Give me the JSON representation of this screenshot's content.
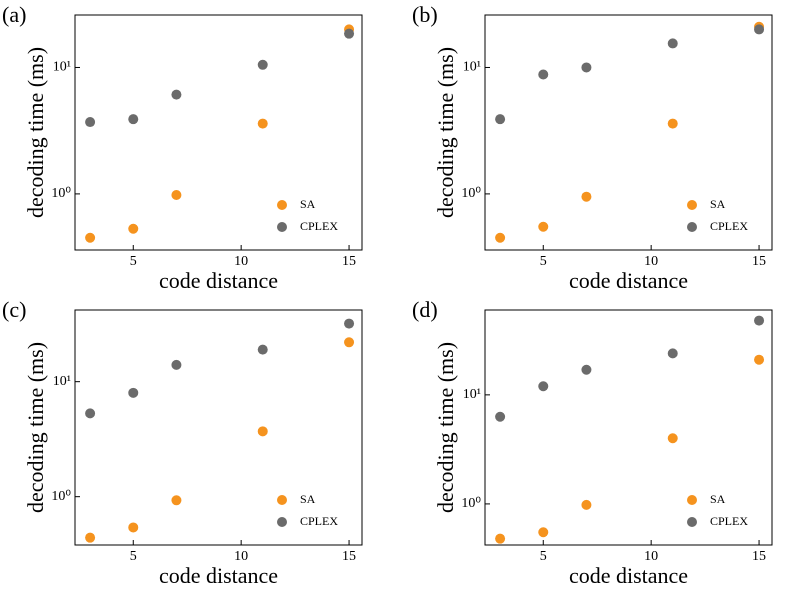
{
  "chart_data": [
    {
      "type": "scatter",
      "panel_label": "(a)",
      "x_label": "code distance",
      "y_label": "decoding time (ms)",
      "ylog": true,
      "legend": "lower right",
      "x": [
        3,
        5,
        7,
        11,
        15
      ],
      "series": [
        {
          "name": "SA",
          "color": "#f5931e",
          "values": [
            0.45,
            0.53,
            0.98,
            3.6,
            20
          ]
        },
        {
          "name": "CPLEX",
          "color": "#6b6b6b",
          "values": [
            3.7,
            3.9,
            6.1,
            10.5,
            18.5
          ]
        }
      ],
      "xlim": [
        2.3,
        15.6
      ],
      "xticks": [
        5,
        10,
        15
      ],
      "ylim": [
        0.36,
        26
      ],
      "yticks": [
        {
          "value": 1,
          "label": "10⁰"
        },
        {
          "value": 10,
          "label": "10¹"
        }
      ]
    },
    {
      "type": "scatter",
      "panel_label": "(b)",
      "x_label": "code distance",
      "y_label": "decoding time (ms)",
      "ylog": true,
      "legend": "lower right",
      "x": [
        3,
        5,
        7,
        11,
        15
      ],
      "series": [
        {
          "name": "SA",
          "color": "#f5931e",
          "values": [
            0.45,
            0.55,
            0.95,
            3.6,
            21
          ]
        },
        {
          "name": "CPLEX",
          "color": "#6b6b6b",
          "values": [
            3.9,
            8.8,
            10,
            15.5,
            20
          ]
        }
      ],
      "xlim": [
        2.3,
        15.6
      ],
      "xticks": [
        5,
        10,
        15
      ],
      "ylim": [
        0.36,
        26
      ],
      "yticks": [
        {
          "value": 1,
          "label": "10⁰"
        },
        {
          "value": 10,
          "label": "10¹"
        }
      ]
    },
    {
      "type": "scatter",
      "panel_label": "(c)",
      "x_label": "code distance",
      "y_label": "decoding time (ms)",
      "ylog": true,
      "legend": "lower right",
      "x": [
        3,
        5,
        7,
        11,
        15
      ],
      "series": [
        {
          "name": "SA",
          "color": "#f5931e",
          "values": [
            0.44,
            0.54,
            0.93,
            3.7,
            22
          ]
        },
        {
          "name": "CPLEX",
          "color": "#6b6b6b",
          "values": [
            5.3,
            8.0,
            14,
            19,
            32
          ]
        }
      ],
      "xlim": [
        2.3,
        15.6
      ],
      "xticks": [
        5,
        10,
        15
      ],
      "ylim": [
        0.38,
        42
      ],
      "yticks": [
        {
          "value": 1,
          "label": "10⁰"
        },
        {
          "value": 10,
          "label": "10¹"
        }
      ]
    },
    {
      "type": "scatter",
      "panel_label": "(d)",
      "x_label": "code distance",
      "y_label": "decoding time (ms)",
      "ylog": true,
      "legend": "lower right",
      "x": [
        3,
        5,
        7,
        11,
        15
      ],
      "series": [
        {
          "name": "SA",
          "color": "#f5931e",
          "values": [
            0.48,
            0.55,
            0.98,
            4.0,
            21
          ]
        },
        {
          "name": "CPLEX",
          "color": "#6b6b6b",
          "values": [
            6.3,
            12,
            17,
            24,
            48
          ]
        }
      ],
      "xlim": [
        2.3,
        15.6
      ],
      "xticks": [
        5,
        10,
        15
      ],
      "ylim": [
        0.42,
        60
      ],
      "yticks": [
        {
          "value": 1,
          "label": "10⁰"
        },
        {
          "value": 10,
          "label": "10¹"
        }
      ]
    }
  ]
}
